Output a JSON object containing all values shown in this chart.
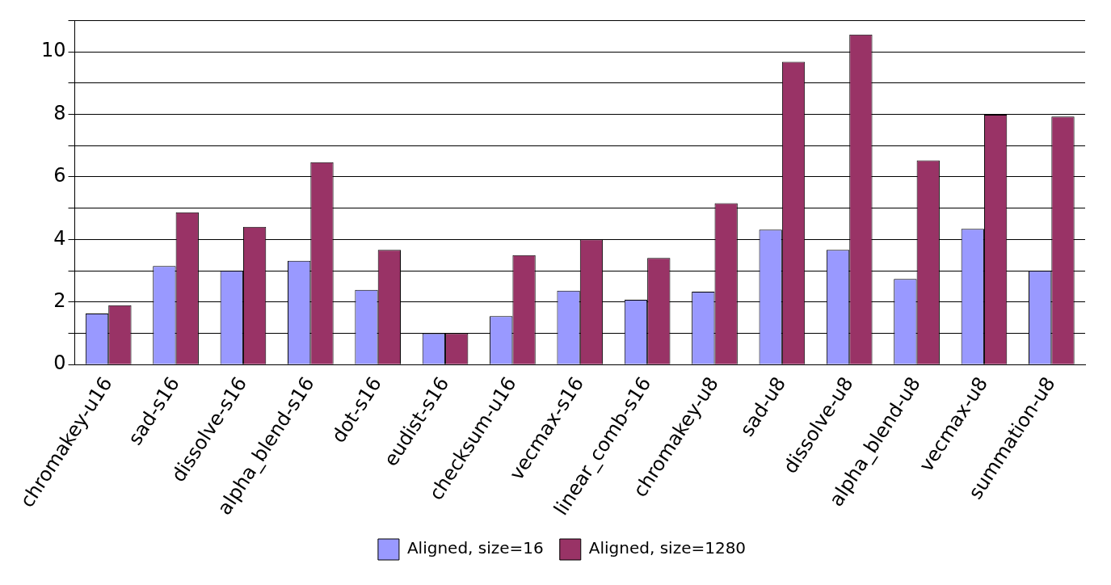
{
  "chart_data": {
    "type": "bar",
    "categories": [
      "chromakey-u16",
      "sad-s16",
      "dissolve-s16",
      "alpha_blend-s16",
      "dot-s16",
      "eudist-s16",
      "checksum-u16",
      "vecmax-s16",
      "linear_comb-s16",
      "chromakey-u8",
      "sad-u8",
      "dissolve-u8",
      "alpha_blend-u8",
      "vecmax-u8",
      "summation-u8"
    ],
    "series": [
      {
        "name": "Aligned, size=16",
        "color": "#9999ff",
        "values": [
          1.63,
          3.15,
          3.0,
          3.32,
          2.39,
          1.0,
          1.55,
          2.36,
          2.07,
          2.33,
          4.31,
          3.67,
          2.74,
          4.34,
          3.0
        ]
      },
      {
        "name": "Aligned, size=1280",
        "color": "#993366",
        "values": [
          1.9,
          4.87,
          4.4,
          6.47,
          3.67,
          1.0,
          3.5,
          4.0,
          3.41,
          5.16,
          9.68,
          10.55,
          6.53,
          7.99,
          7.93
        ]
      }
    ],
    "ylim": [
      0,
      11
    ],
    "yticks": [
      0,
      {
        "value": 1,
        "label": null
      },
      2,
      {
        "value": 3,
        "label": null
      },
      4,
      {
        "value": 5,
        "label": null
      },
      6,
      {
        "value": 7,
        "label": null
      },
      8,
      {
        "value": 9,
        "label": null
      },
      10,
      {
        "value": 11,
        "label": null
      }
    ],
    "grid": "y",
    "legend": "bottom"
  }
}
